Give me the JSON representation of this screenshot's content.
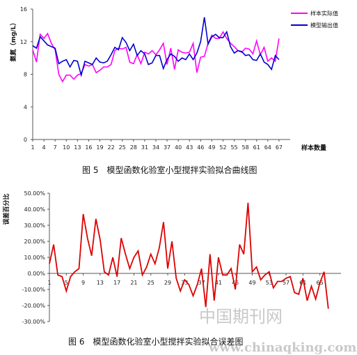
{
  "chart_data": [
    {
      "type": "line",
      "ylabel": "氨氮（mg/L）",
      "xlabel": "样本数量",
      "ylim": [
        0,
        16
      ],
      "yticks": [
        0,
        4,
        8,
        12,
        16
      ],
      "xlim": [
        1,
        70
      ],
      "xticks": [
        1,
        4,
        7,
        10,
        13,
        16,
        19,
        22,
        25,
        28,
        31,
        34,
        37,
        40,
        43,
        46,
        49,
        52,
        55,
        58,
        61,
        64,
        67
      ],
      "legend": "top-right",
      "grid": false,
      "caption": "图 5　模型函数化验室小型搅拌实验拟合曲线图",
      "series": [
        {
          "name": "样本实际值",
          "color": "#ff00ff",
          "values": [
            11.0,
            9.5,
            12.9,
            12.4,
            13.0,
            11.8,
            11.0,
            8.0,
            7.1,
            7.9,
            7.9,
            7.4,
            7.9,
            8.1,
            9.2,
            9.0,
            9.2,
            8.2,
            8.5,
            8.9,
            8.9,
            9.2,
            10.9,
            11.2,
            11.1,
            11.3,
            9.5,
            9.3,
            10.4,
            9.3,
            10.7,
            10.5,
            10.9,
            10.4,
            11.0,
            11.8,
            9.2,
            11.2,
            8.6,
            11.0,
            10.7,
            10.6,
            10.7,
            11.8,
            8.2,
            10.1,
            10.2,
            11.8,
            12.8,
            12.4,
            12.4,
            13.2,
            12.4,
            11.8,
            11.4,
            10.9,
            10.7,
            11.2,
            11.1,
            10.5,
            12.1,
            10.4,
            11.3,
            9.6,
            10.0,
            9.6,
            12.4
          ]
        },
        {
          "name": "模型输出值",
          "color": "#0000cc",
          "values": [
            11.5,
            11.2,
            12.6,
            12.1,
            11.6,
            11.4,
            11.2,
            9.3,
            9.6,
            9.8,
            8.9,
            9.7,
            9.6,
            7.9,
            9.6,
            9.4,
            9.2,
            10.0,
            9.5,
            9.4,
            9.6,
            10.4,
            11.3,
            11.0,
            12.5,
            11.9,
            10.9,
            11.7,
            10.3,
            10.9,
            10.5,
            9.2,
            9.4,
            10.3,
            10.3,
            8.7,
            9.8,
            10.5,
            10.2,
            9.6,
            10.0,
            9.8,
            10.5,
            9.8,
            10.6,
            12.0,
            15.0,
            11.7,
            12.6,
            12.9,
            12.5,
            12.5,
            13.2,
            11.4,
            10.6,
            10.9,
            10.8,
            10.3,
            10.4,
            9.8,
            9.7,
            10.5,
            9.5,
            9.2,
            8.6,
            10.3,
            9.8
          ]
        }
      ]
    },
    {
      "type": "line",
      "ylabel": "误差百分比",
      "ylim": [
        -30,
        50
      ],
      "yticks": [
        50,
        40,
        30,
        20,
        10,
        0,
        -10,
        -20,
        -30
      ],
      "ytick_labels": [
        "50.00%",
        "40.00%",
        "30.00%",
        "20.00%",
        "10.00%",
        "0.00%",
        "-10.00%",
        "-20.00%",
        "-30.00%"
      ],
      "xlim": [
        1,
        70
      ],
      "xticks": [
        1,
        5,
        9,
        13,
        17,
        21,
        25,
        29,
        33,
        37,
        41,
        45,
        49,
        53,
        57,
        61,
        65
      ],
      "xtick_labels": [
        "1",
        "5",
        "9",
        "13",
        "17",
        "21",
        "25",
        "29",
        "33",
        "37",
        "41",
        "45",
        "49",
        "53",
        "57",
        "61",
        "65"
      ],
      "grid": false,
      "caption": "图 6　模型函数化验室小型搅拌实验拟合误差图",
      "series": [
        {
          "name": "",
          "color": "#dd0000",
          "values": [
            6,
            18,
            -1,
            -2,
            -11,
            -2,
            1,
            3,
            37,
            22,
            11,
            34,
            21,
            1,
            -1,
            10,
            -2,
            22,
            12,
            3,
            10,
            14,
            -1,
            4,
            12,
            6,
            16,
            32,
            3,
            20,
            -3,
            -11,
            -4,
            -7,
            -14,
            -7,
            3,
            -21,
            12,
            -17,
            10,
            -1,
            -1,
            3,
            -10,
            18,
            12,
            44,
            1,
            4,
            -4,
            -1,
            1,
            -9,
            -5,
            -5,
            -3,
            -2,
            -12,
            -13,
            -3,
            -17,
            -8,
            -16,
            -6,
            1,
            -22
          ]
        }
      ]
    }
  ],
  "watermark": {
    "cn": "中国期刊网",
    "url": "www.chinaqking.com"
  }
}
